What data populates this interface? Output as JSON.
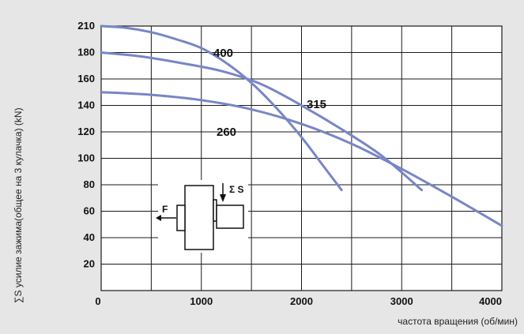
{
  "chart_data": {
    "type": "line",
    "xlabel": "частота вращения (об/мин)",
    "ylabel": "∑S усилие зажима(общее на 3 кулачка) (kN)",
    "xlim": [
      0,
      4000
    ],
    "y_ticks": [
      20,
      40,
      60,
      80,
      100,
      120,
      140,
      160,
      180,
      210
    ],
    "x_ticks": [
      0,
      1000,
      2000,
      3000,
      4000
    ],
    "x_tick_labels": [
      "0",
      "1000",
      "2000",
      "3000",
      "4000"
    ],
    "y_tick_labels": [
      "20",
      "40",
      "60",
      "80",
      "100",
      "120",
      "140",
      "160",
      "180",
      "210"
    ],
    "grid": true,
    "series": [
      {
        "name": "400",
        "x": [
          0,
          250,
          500,
          750,
          1000,
          1250,
          1500,
          1750,
          2000,
          2200,
          2400
        ],
        "values": [
          210,
          208,
          203,
          195,
          185,
          172,
          157,
          138,
          116,
          96,
          76
        ]
      },
      {
        "name": "315",
        "x": [
          0,
          400,
          800,
          1200,
          1600,
          2000,
          2400,
          2800,
          3200
        ],
        "values": [
          180,
          177,
          172,
          166,
          156,
          140,
          122,
          102,
          76
        ]
      },
      {
        "name": "260",
        "x": [
          0,
          500,
          1000,
          1500,
          2000,
          2500,
          3000,
          3500,
          4000
        ],
        "values": [
          150,
          148,
          144,
          137,
          126,
          111,
          92,
          71,
          49
        ]
      }
    ],
    "colors": {
      "series": "#7786c6",
      "grid": "#1a1a1a",
      "background": "#e6e6e6",
      "plot": "#ffffff"
    }
  },
  "inset": {
    "force_label": "F",
    "clamp_label": "Σ S"
  }
}
